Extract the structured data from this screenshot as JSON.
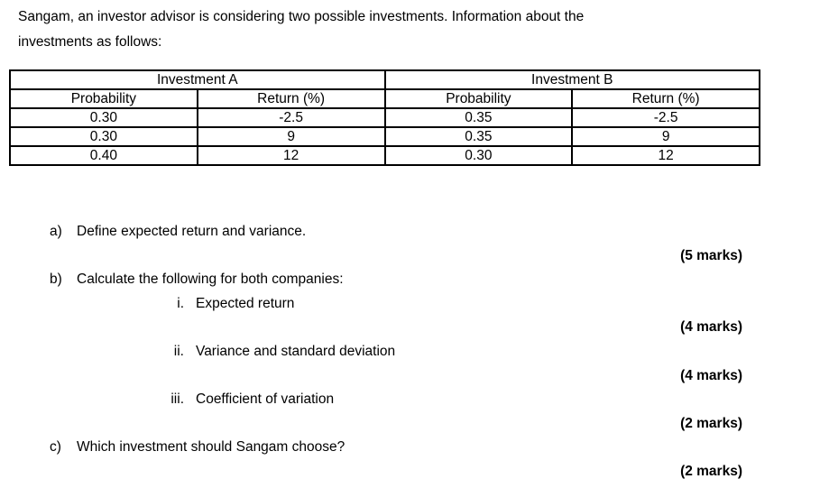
{
  "page": {
    "background_color": "#ffffff",
    "text_color": "#000000",
    "table_border_color": "#000000"
  },
  "intro": {
    "line1": "Sangam, an investor advisor is considering two possible investments. Information about the",
    "line2": "investments as follows:"
  },
  "table": {
    "groups": [
      {
        "title": "Investment A",
        "columns": [
          "Probability",
          "Return (%)"
        ]
      },
      {
        "title": "Investment B",
        "columns": [
          "Probability",
          "Return (%)"
        ]
      }
    ],
    "rows": [
      [
        "0.30",
        "-2.5",
        "0.35",
        "-2.5"
      ],
      [
        "0.30",
        "9",
        "0.35",
        "9"
      ],
      [
        "0.40",
        "12",
        "0.30",
        "12"
      ]
    ]
  },
  "questions": {
    "a": {
      "label": "a)",
      "text": "Define expected return and variance.",
      "marks": "(5 marks)"
    },
    "b": {
      "label": "b)",
      "text": "Calculate the following for both companies:"
    },
    "b_i": {
      "label": "i.",
      "text": "Expected return",
      "marks": "(4 marks)"
    },
    "b_ii": {
      "label": "ii.",
      "text": "Variance and standard deviation",
      "marks": "(4 marks)"
    },
    "b_iii": {
      "label": "iii.",
      "text": "Coefficient of variation",
      "marks": "(2 marks)"
    },
    "c": {
      "label": "c)",
      "text": "Which investment should Sangam choose?",
      "marks": "(2 marks)"
    }
  }
}
